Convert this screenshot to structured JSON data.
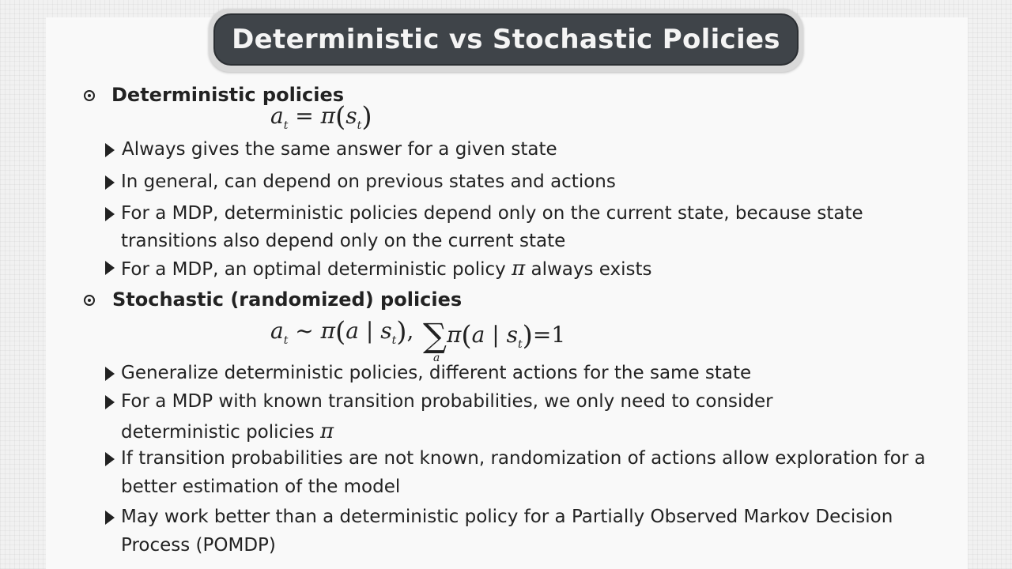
{
  "title": "Deterministic vs Stochastic Policies",
  "sections": [
    {
      "heading": "Deterministic policies",
      "formula": {
        "lhs": "a",
        "lhs_sub": "t",
        "rel": "=",
        "func": "π",
        "arg": "s",
        "arg_sub": "t"
      },
      "items": [
        "Always gives the same answer for a given state",
        "In general, can depend on previous states and actions",
        "For a MDP, deterministic policies depend only on the current state, because state",
        "transitions also depend only on the current state",
        "For a MDP, an optimal deterministic policy",
        "always exists"
      ]
    },
    {
      "heading": "Stochastic (randomized) policies",
      "formula": {
        "lhs": "a",
        "lhs_sub": "t",
        "rel": "~",
        "func": "π",
        "cond_var": "a",
        "bar": "|",
        "arg": "s",
        "arg_sub": "t",
        "sep": ",",
        "sum": "∑",
        "sum_sub": "a",
        "equals": "=",
        "one": "1"
      },
      "items": [
        "Generalize deterministic policies, different actions for the same state",
        "For a MDP with known transition probabilities, we only need to consider",
        "deterministic policies",
        "If transition probabilities are not known, randomization of actions allow exploration for a",
        "better estimation of the model",
        "May work better than a deterministic policy for a Partially Observed Markov Decision",
        "Process (POMDP)"
      ]
    }
  ],
  "symbols": {
    "pi": "π"
  }
}
